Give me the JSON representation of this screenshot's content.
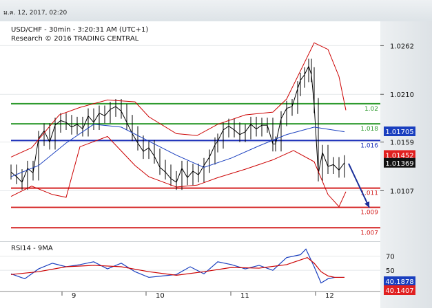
{
  "header": {
    "timestamp": "ม.ค. 12, 2017, 02:20"
  },
  "chart_data": [
    {
      "type": "line",
      "panel": "price",
      "title": "USD/CHF - 30min - 3:20:31 AM (UTC+1)",
      "subtitle": "Research © 2016 TRADING CENTRAL",
      "x_tick_labels": [
        "9",
        "10",
        "11",
        "12"
      ],
      "y_tick_labels": [
        "1.0262",
        "1.0210",
        "1.0159",
        "1.0107"
      ],
      "y_ticks": [
        1.0262,
        1.021,
        1.0159,
        1.0107
      ],
      "ylim": [
        1.0053,
        1.0288
      ],
      "grid": true,
      "level_lines": [
        {
          "label": "1.02",
          "value": 1.02,
          "color": "#2e9a2e"
        },
        {
          "label": "1.018",
          "value": 1.01785,
          "color": "#2e9a2e"
        },
        {
          "label": "1.016",
          "value": 1.01607,
          "color": "#1a2fb8"
        },
        {
          "label": "1.011",
          "value": 1.01098,
          "color": "#d42020"
        },
        {
          "label": "1.009",
          "value": 1.00893,
          "color": "#d42020"
        },
        {
          "label": "1.007",
          "value": 1.00675,
          "color": "#d42020"
        }
      ],
      "price_badges": [
        {
          "label": "1.01705",
          "value": 1.01705,
          "color": "#1a3fbf"
        },
        {
          "label": "1.01452",
          "value": 1.01452,
          "color": "#e02020"
        },
        {
          "label": "1.01369",
          "value": 1.01369,
          "color": "#111111"
        }
      ],
      "series": [
        {
          "role": "price",
          "x": [
            0,
            8,
            16,
            24,
            32,
            40,
            48,
            56,
            64,
            72,
            80,
            88,
            96,
            104,
            112,
            120,
            128,
            136,
            144,
            152,
            160,
            168,
            176,
            184,
            192,
            200,
            208,
            216,
            224,
            232,
            240,
            248,
            256,
            264,
            272,
            280,
            288,
            296,
            300,
            308,
            316,
            324,
            332,
            340,
            348,
            356,
            364,
            372,
            380,
            384,
            392,
            400,
            408,
            416,
            420,
            426,
            432,
            436,
            440,
            446,
            452,
            460,
            468,
            476,
            484
          ],
          "values": [
            1.0127,
            1.0122,
            1.0116,
            1.0131,
            1.0126,
            1.0163,
            1.0171,
            1.0159,
            1.0177,
            1.0182,
            1.018,
            1.0175,
            1.0178,
            1.0173,
            1.0187,
            1.018,
            1.019,
            1.0187,
            1.0194,
            1.0197,
            1.0192,
            1.018,
            1.0168,
            1.0158,
            1.0149,
            1.0153,
            1.0144,
            1.0132,
            1.0127,
            1.012,
            1.0116,
            1.0131,
            1.0121,
            1.0128,
            1.0124,
            1.0134,
            1.0143,
            1.0156,
            1.016,
            1.0172,
            1.0176,
            1.0172,
            1.0167,
            1.017,
            1.0178,
            1.0173,
            1.0177,
            1.0177,
            1.0157,
            1.0157,
            1.0184,
            1.0195,
            1.0197,
            1.0216,
            1.0225,
            1.0231,
            1.024,
            1.0231,
            1.0198,
            1.0125,
            1.0148,
            1.0133,
            1.0135,
            1.0129,
            1.0137
          ],
          "color": "#000000"
        },
        {
          "role": "moving-average",
          "x": [
            0,
            40,
            80,
            120,
            160,
            200,
            240,
            280,
            320,
            360,
            400,
            440,
            484
          ],
          "values": [
            1.0122,
            1.0134,
            1.0158,
            1.0178,
            1.0175,
            1.016,
            1.0145,
            1.0132,
            1.0142,
            1.0155,
            1.0167,
            1.0175,
            1.017
          ],
          "color": "#1a3fbf"
        },
        {
          "role": "bollinger-upper",
          "x": [
            0,
            30,
            70,
            100,
            140,
            180,
            200,
            240,
            270,
            300,
            340,
            380,
            400,
            420,
            440,
            460,
            476,
            486
          ],
          "values": [
            1.0143,
            1.0153,
            1.0188,
            1.0196,
            1.0204,
            1.0202,
            1.0186,
            1.0168,
            1.0166,
            1.0178,
            1.0188,
            1.0191,
            1.0205,
            1.0235,
            1.0265,
            1.0258,
            1.0229,
            1.0193
          ],
          "color": "#cc0000"
        },
        {
          "role": "bollinger-lower",
          "x": [
            0,
            30,
            60,
            80,
            100,
            140,
            180,
            200,
            240,
            270,
            300,
            340,
            380,
            410,
            440,
            460,
            476,
            486
          ],
          "values": [
            1.0101,
            1.0112,
            1.0103,
            1.01,
            1.0154,
            1.0165,
            1.0134,
            1.0122,
            1.0111,
            1.0113,
            1.0121,
            1.013,
            1.014,
            1.015,
            1.0138,
            1.0103,
            1.009,
            1.0106
          ],
          "color": "#cc0000"
        }
      ],
      "forecast_arrow": {
        "from": [
          490,
          1.0136
        ],
        "to": [
          520,
          1.0089
        ],
        "color": "#1a2f9a"
      }
    },
    {
      "type": "line",
      "panel": "rsi",
      "title": "RSI14 - 9MA",
      "y_tick_labels": [
        "70",
        "50"
      ],
      "y_ticks": [
        70,
        50
      ],
      "ylim": [
        20,
        90
      ],
      "price_badges": [
        {
          "label": "40.1878",
          "value": 40.1878,
          "color": "#1a3fbf"
        },
        {
          "label": "40.1407",
          "value": 40.1407,
          "color": "#e02020"
        }
      ],
      "series": [
        {
          "role": "rsi",
          "x": [
            0,
            20,
            40,
            60,
            80,
            100,
            120,
            140,
            160,
            180,
            200,
            220,
            240,
            260,
            280,
            300,
            320,
            340,
            360,
            380,
            400,
            420,
            428,
            440,
            450,
            460,
            470,
            484
          ],
          "values": [
            45,
            38,
            52,
            60,
            55,
            58,
            62,
            52,
            60,
            48,
            40,
            42,
            44,
            55,
            45,
            62,
            58,
            52,
            57,
            50,
            68,
            72,
            80,
            55,
            32,
            38,
            40,
            40
          ],
          "color": "#1a3fbf"
        },
        {
          "role": "signal-ma",
          "x": [
            0,
            40,
            80,
            120,
            160,
            200,
            240,
            280,
            320,
            360,
            400,
            430,
            440,
            450,
            460,
            470,
            484
          ],
          "values": [
            44,
            48,
            55,
            57,
            55,
            48,
            43,
            48,
            54,
            53,
            58,
            68,
            60,
            48,
            42,
            40,
            40
          ],
          "color": "#cc0000"
        }
      ]
    }
  ]
}
